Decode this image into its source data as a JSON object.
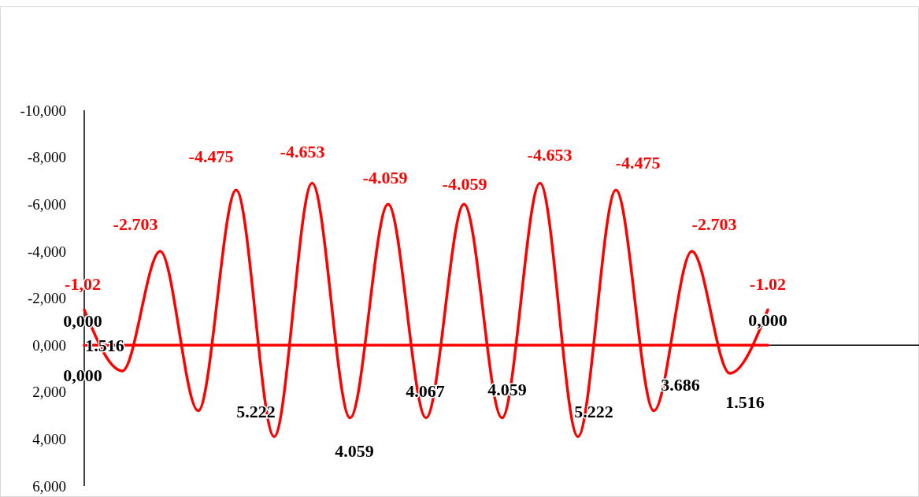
{
  "chart_data": {
    "type": "line",
    "categories": [
      null,
      null,
      null,
      null,
      null,
      null,
      null,
      null,
      null,
      null,
      null,
      null,
      null,
      null,
      null,
      null,
      null,
      null,
      null
    ],
    "series": [
      {
        "color": "#ff0000",
        "values": [
          -1.5,
          1.1,
          -4.0,
          2.8,
          -6.6,
          3.9,
          -6.9,
          3.1,
          -6.0,
          3.1,
          -6.0,
          3.1,
          -6.9,
          3.9,
          -6.6,
          2.8,
          -4.0,
          1.2,
          -1.5
        ]
      },
      {
        "color": "#ff0000",
        "values": [
          0,
          0,
          0,
          0,
          0,
          0,
          0,
          0,
          0,
          0,
          0,
          0,
          0,
          0,
          0,
          0,
          0,
          0,
          0
        ]
      }
    ],
    "ylim": [
      6,
      -10
    ],
    "yticks": [
      {
        "value": -10,
        "label": "-10,000"
      },
      {
        "value": -8,
        "label": "-8,000"
      },
      {
        "value": -6,
        "label": "-6,000"
      },
      {
        "value": -4,
        "label": "-4,000"
      },
      {
        "value": -2,
        "label": "-2,000"
      },
      {
        "value": 0,
        "label": "0,000"
      },
      {
        "value": 2,
        "label": "2,000"
      },
      {
        "value": 4,
        "label": "4,000"
      },
      {
        "value": 6,
        "label": "6,000"
      }
    ],
    "tick_labels": "y",
    "annotations": [
      "-1,02",
      "0,000",
      "1.516",
      "0,000",
      "-2.703",
      "-4.475",
      "-4.653",
      "-4.059",
      "-4.059",
      "-4.653",
      "-4.475",
      "-2.703",
      "-1.02",
      "0,000",
      "5.222",
      "4.059",
      "4.067",
      "4.059",
      "5.222",
      "3.686",
      "1.516"
    ]
  }
}
